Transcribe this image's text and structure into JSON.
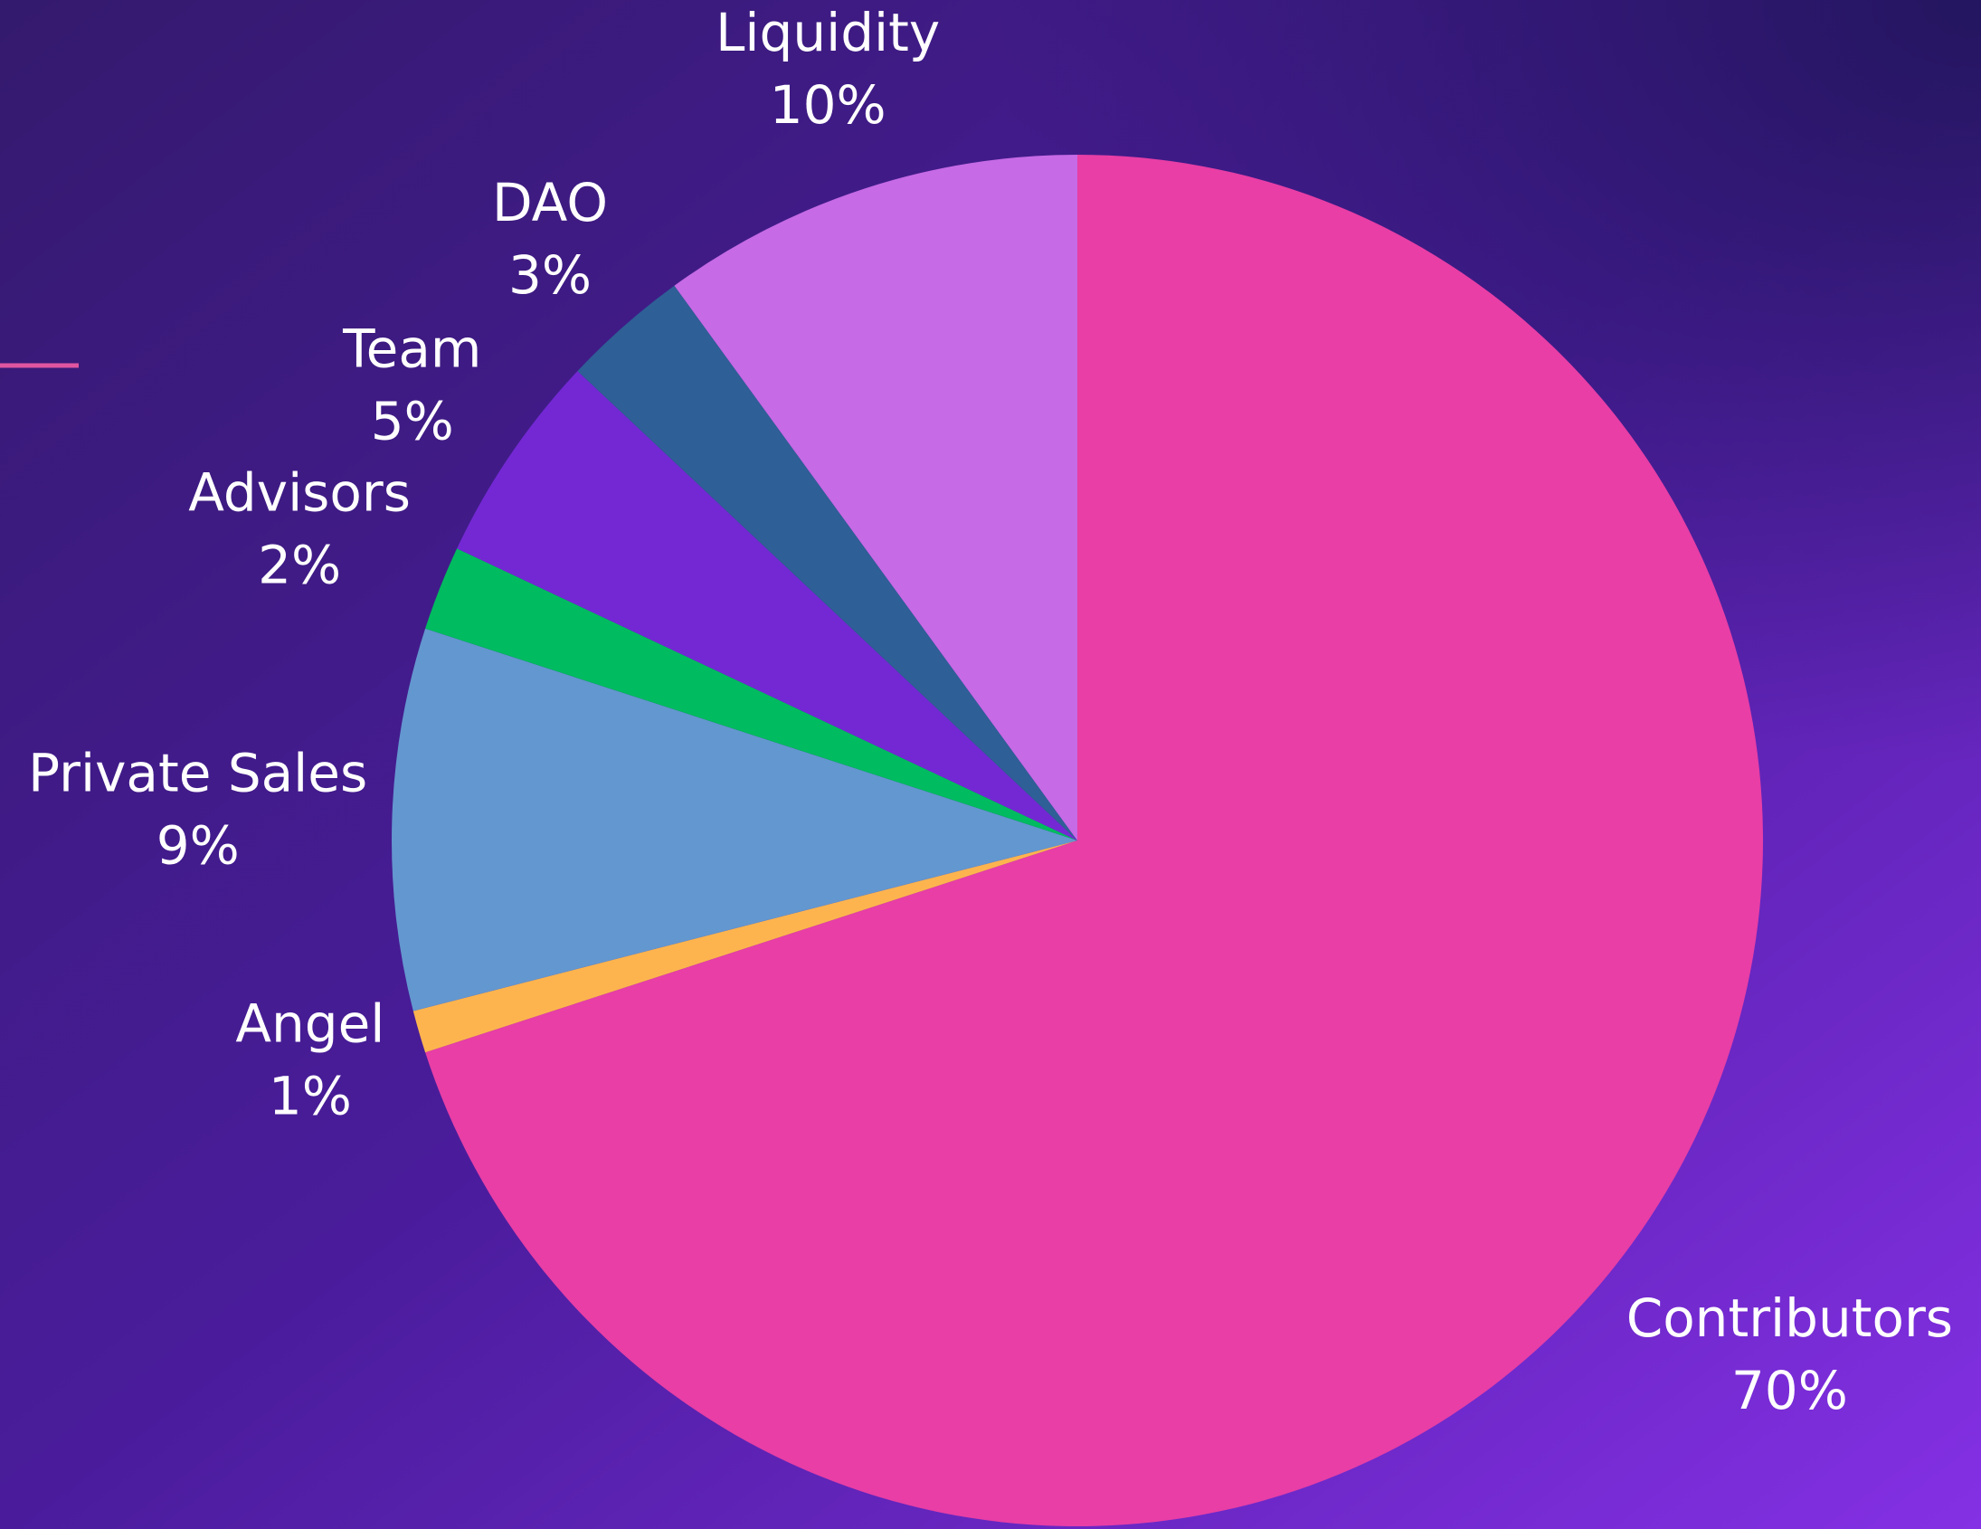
{
  "chart_data": {
    "type": "pie",
    "categories": [
      "Contributors",
      "Angel",
      "Private Sales",
      "Advisors",
      "Team",
      "DAO",
      "Liquidity"
    ],
    "values": [
      70,
      1,
      9,
      2,
      5,
      3,
      10
    ],
    "value_labels": [
      "70%",
      "1%",
      "9%",
      "2%",
      "5%",
      "3%",
      "10%"
    ],
    "colors": [
      "#e83ea6",
      "#fdb44f",
      "#6397cf",
      "#00bb5f",
      "#7428d4",
      "#2e5f96",
      "#c66ae6"
    ]
  }
}
